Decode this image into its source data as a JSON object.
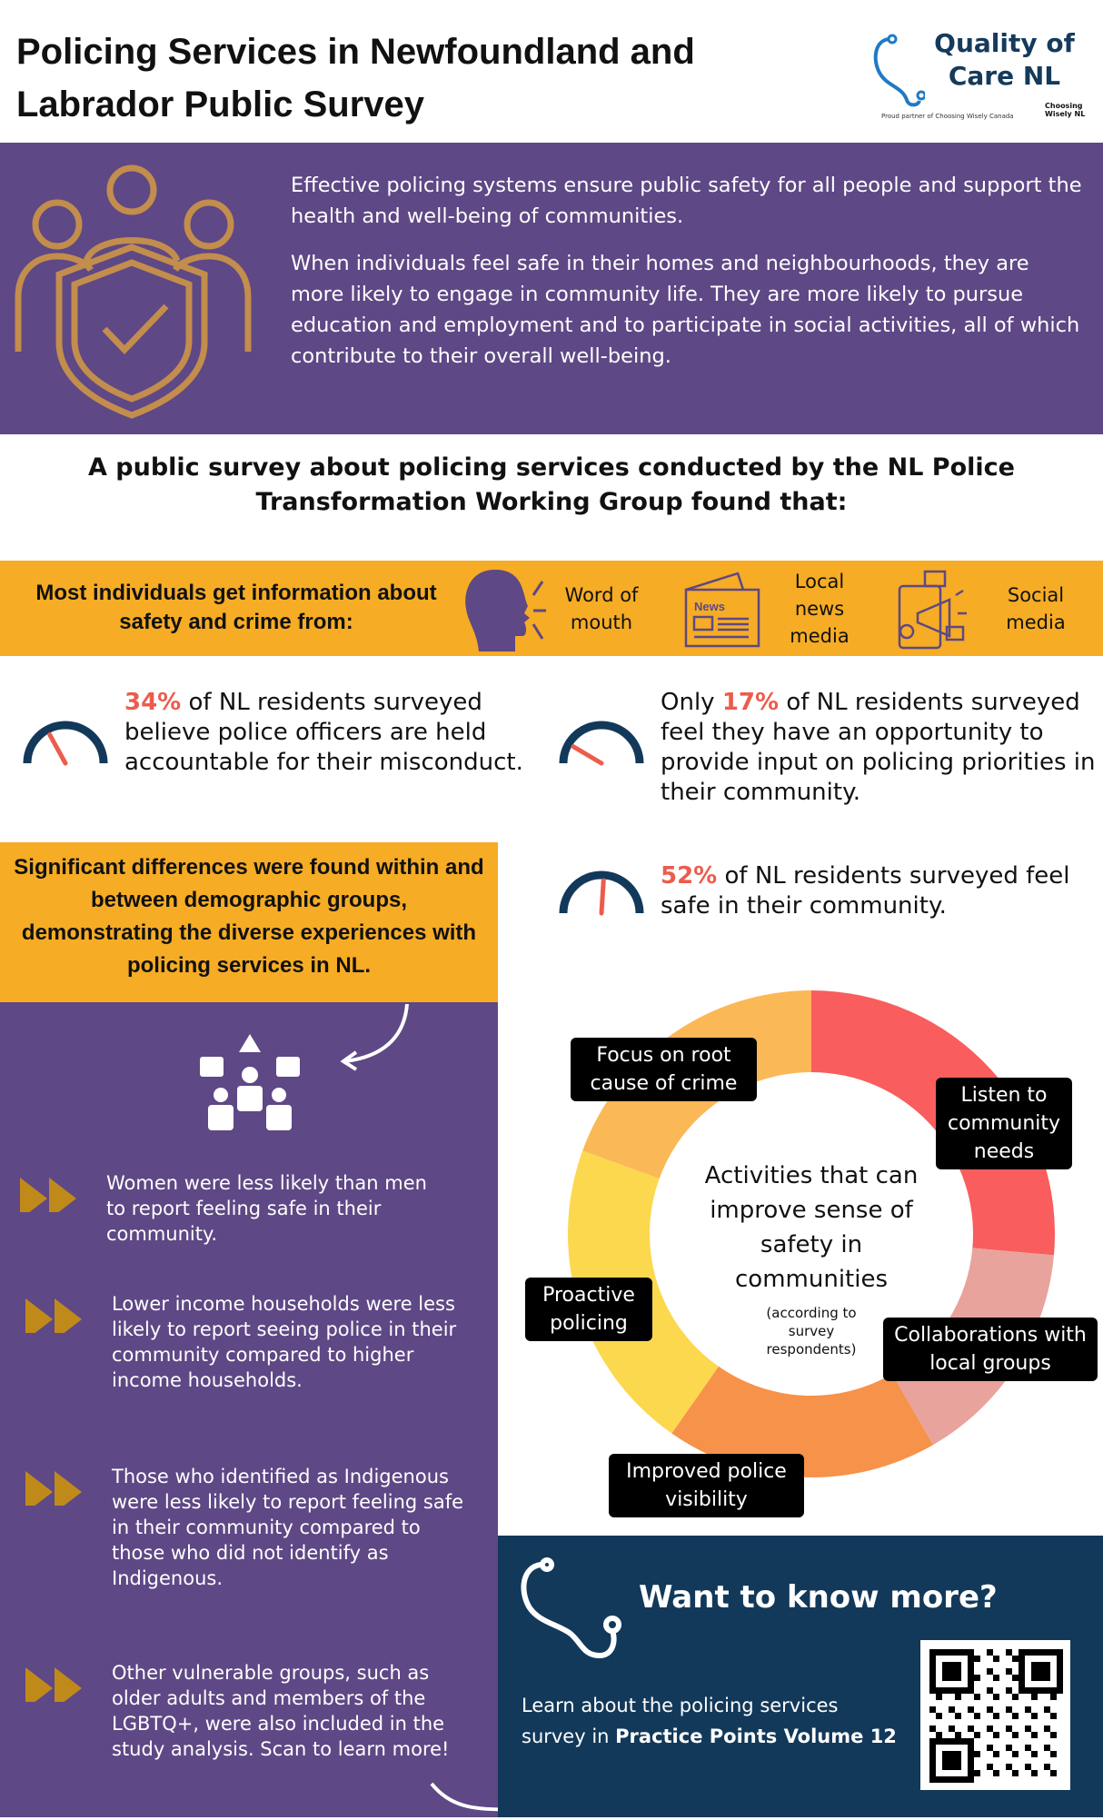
{
  "header": {
    "title": "Policing Services in Newfoundland and Labrador Public Survey",
    "logo": {
      "line1": "Quality of",
      "line2": "Care NL",
      "tagline": "Proud partner of Choosing Wisely Canada",
      "partner": "Choosing Wisely NL"
    }
  },
  "intro": {
    "p1": "Effective policing systems ensure public safety for all people and support the health and well-being of communities.",
    "p2": "When individuals feel safe in their homes and neighbourhoods, they are more likely to engage in community life. They are more likely to pursue education and employment and to participate in social activities, all of which contribute to their overall well-being."
  },
  "headline": "A public survey about policing services conducted by the NL Police Transformation Working Group found that:",
  "info": {
    "lead": "Most individuals get information about safety and crime from:",
    "sources": [
      "Word of mouth",
      "Local news media",
      "Social media"
    ],
    "news_icon_text": "News"
  },
  "stats": [
    {
      "pre": "",
      "pct": "34%",
      "text": " of NL residents surveyed believe police officers are held accountable for their misconduct.",
      "value": 34
    },
    {
      "pre": "Only ",
      "pct": "17%",
      "text": " of NL residents surveyed feel they have an opportunity to provide input on policing priorities in their community.",
      "value": 17
    },
    {
      "pre": "",
      "pct": "52%",
      "text": " of NL residents surveyed feel safe in their community.",
      "value": 52
    }
  ],
  "differences": "Significant differences were found within and between demographic groups, demonstrating the diverse experiences with policing services in NL.",
  "findings": [
    "Women were less likely than men to report feeling safe in their community.",
    "Lower income households were less likely to report seeing police in their community compared to higher income households.",
    "Those who identified as Indigenous were less likely to report feeling safe in their community compared to those who did not identify as Indigenous.",
    "Other vulnerable groups, such as older adults and members of the LGBTQ+, were also included in the study analysis. Scan to learn more!"
  ],
  "activities": {
    "title": "Activities that can improve sense of safety in communities",
    "note": "(according to survey respondents)",
    "items": [
      "Listen to community needs",
      "Collaborations with local groups",
      "Improved police visibility",
      "Proactive policing",
      "Focus on root cause of crime"
    ]
  },
  "more": {
    "title": "Want to know more?",
    "learn": "Learn about the policing services survey in ",
    "learn_bold": "Practice Points Volume 12"
  },
  "colors": {
    "purple": "#5e4885",
    "orange": "#f6ac24",
    "navy": "#12395a",
    "red": "#ec5c4d"
  }
}
